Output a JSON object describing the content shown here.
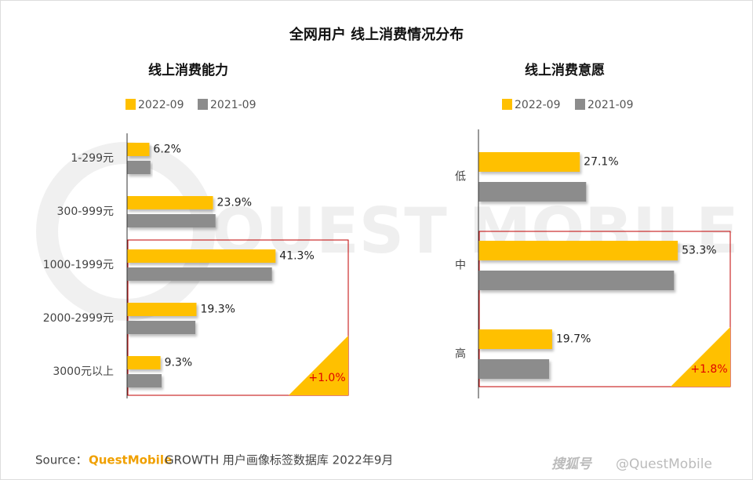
{
  "title": "全网用户 线上消费情况分布",
  "chart_data": [
    {
      "type": "bar",
      "orientation": "horizontal",
      "title": "线上消费能力",
      "categories": [
        "1-299元",
        "300-999元",
        "1000-1999元",
        "2000-2999元",
        "3000元以上"
      ],
      "series": [
        {
          "name": "2022-09",
          "color": "#ffc000",
          "values": [
            6.2,
            23.9,
            41.3,
            19.3,
            9.3
          ],
          "value_labels": [
            "6.2%",
            "23.9%",
            "41.3%",
            "19.3%",
            "9.3%"
          ]
        },
        {
          "name": "2021-09",
          "color": "#8c8c8c",
          "values": [
            6.5,
            24.6,
            40.3,
            19.0,
            9.6
          ]
        }
      ],
      "xlim": [
        0,
        60
      ],
      "annotation": "+1.0%"
    },
    {
      "type": "bar",
      "orientation": "horizontal",
      "title": "线上消费意愿",
      "categories": [
        "低",
        "中",
        "高"
      ],
      "series": [
        {
          "name": "2022-09",
          "color": "#ffc000",
          "values": [
            27.1,
            53.3,
            19.7
          ],
          "value_labels": [
            "27.1%",
            "53.3%",
            "19.7%"
          ]
        },
        {
          "name": "2021-09",
          "color": "#8c8c8c",
          "values": [
            28.8,
            52.3,
            18.9
          ]
        }
      ],
      "xlim": [
        0,
        60
      ],
      "annotation": "+1.8%"
    }
  ],
  "watermark": "QUEST MOBILE",
  "source": {
    "label": "Source：",
    "brand": "QuestMobile",
    "text": "GROWTH 用户画像标签数据库 2022年9月"
  },
  "credit": {
    "platform": "搜狐号",
    "account": "@QuestMobile"
  }
}
